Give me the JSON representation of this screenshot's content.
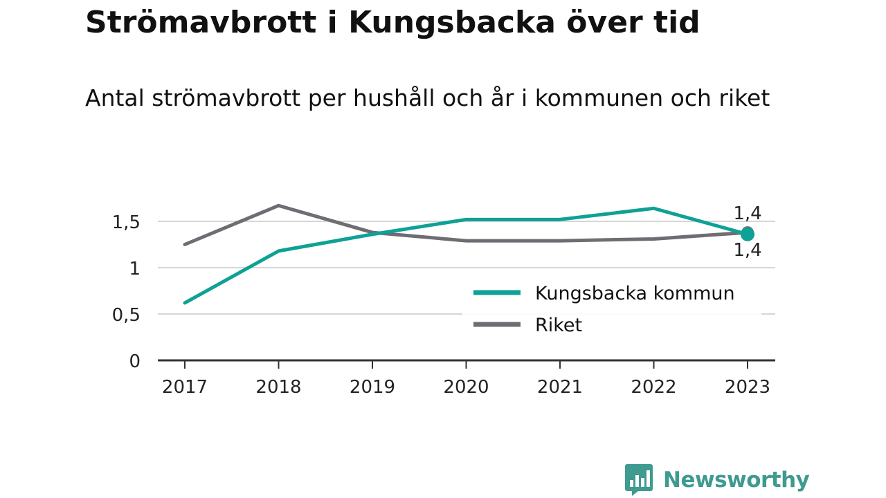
{
  "header": {
    "title": "Strömavbrott i Kungsbacka över tid",
    "subtitle": "Antal strömavbrott per hushåll och år i kommunen och riket"
  },
  "brand": {
    "name": "Newsworthy",
    "icon": "newsworthy-logo-icon",
    "color": "#3f9a90"
  },
  "chart_data": {
    "type": "line",
    "x": [
      "2017",
      "2018",
      "2019",
      "2020",
      "2021",
      "2022",
      "2023"
    ],
    "y_ticks": [
      0,
      0.5,
      1,
      1.5
    ],
    "y_tick_labels": [
      "0",
      "0,5",
      "1",
      "1,5"
    ],
    "ylim": [
      0,
      1.85
    ],
    "grid": "horizontal",
    "legend_position": "bottom-right",
    "series": [
      {
        "name": "Kungsbacka kommun",
        "color": "#0ea196",
        "values": [
          0.62,
          1.18,
          1.36,
          1.52,
          1.52,
          1.64,
          1.36
        ],
        "end_label": "1,4"
      },
      {
        "name": "Riket",
        "color": "#6e6d73",
        "values": [
          1.25,
          1.67,
          1.38,
          1.29,
          1.29,
          1.31,
          1.38
        ],
        "end_label": "1,4"
      }
    ]
  }
}
